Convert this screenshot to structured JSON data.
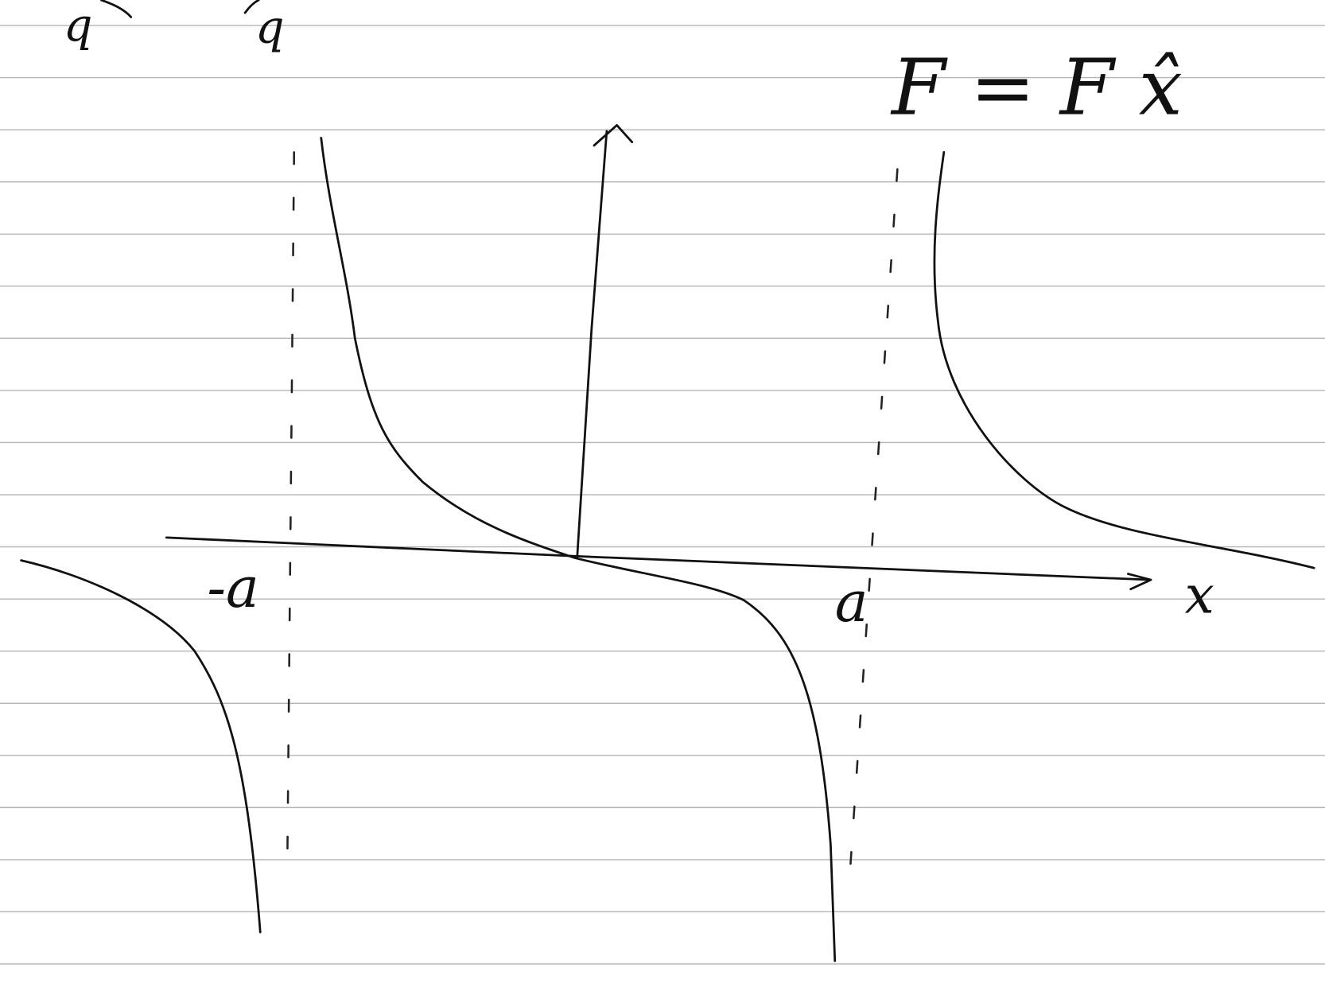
{
  "labels": {
    "charge_left": "q",
    "charge_right": "q",
    "force": "F = F x̂",
    "neg_a": "-a",
    "pos_a": "a",
    "x_axis": "x"
  }
}
